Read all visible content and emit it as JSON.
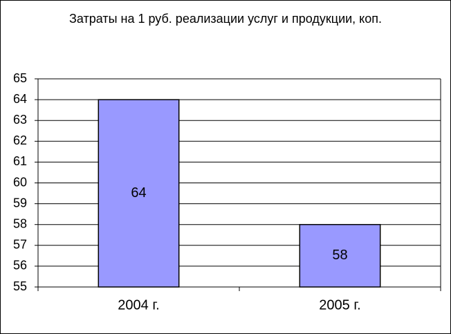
{
  "chart_data": {
    "type": "bar",
    "title": "Затраты на 1 руб. реализации услуг и продукции, коп.",
    "categories": [
      "2004 г.",
      "2005 г."
    ],
    "values": [
      64,
      58
    ],
    "color": "#9999ff",
    "ylim": [
      55,
      65
    ],
    "yticks": [
      55,
      56,
      57,
      58,
      59,
      60,
      61,
      62,
      63,
      64,
      65
    ],
    "grid": true,
    "value_labels_shown": true
  }
}
